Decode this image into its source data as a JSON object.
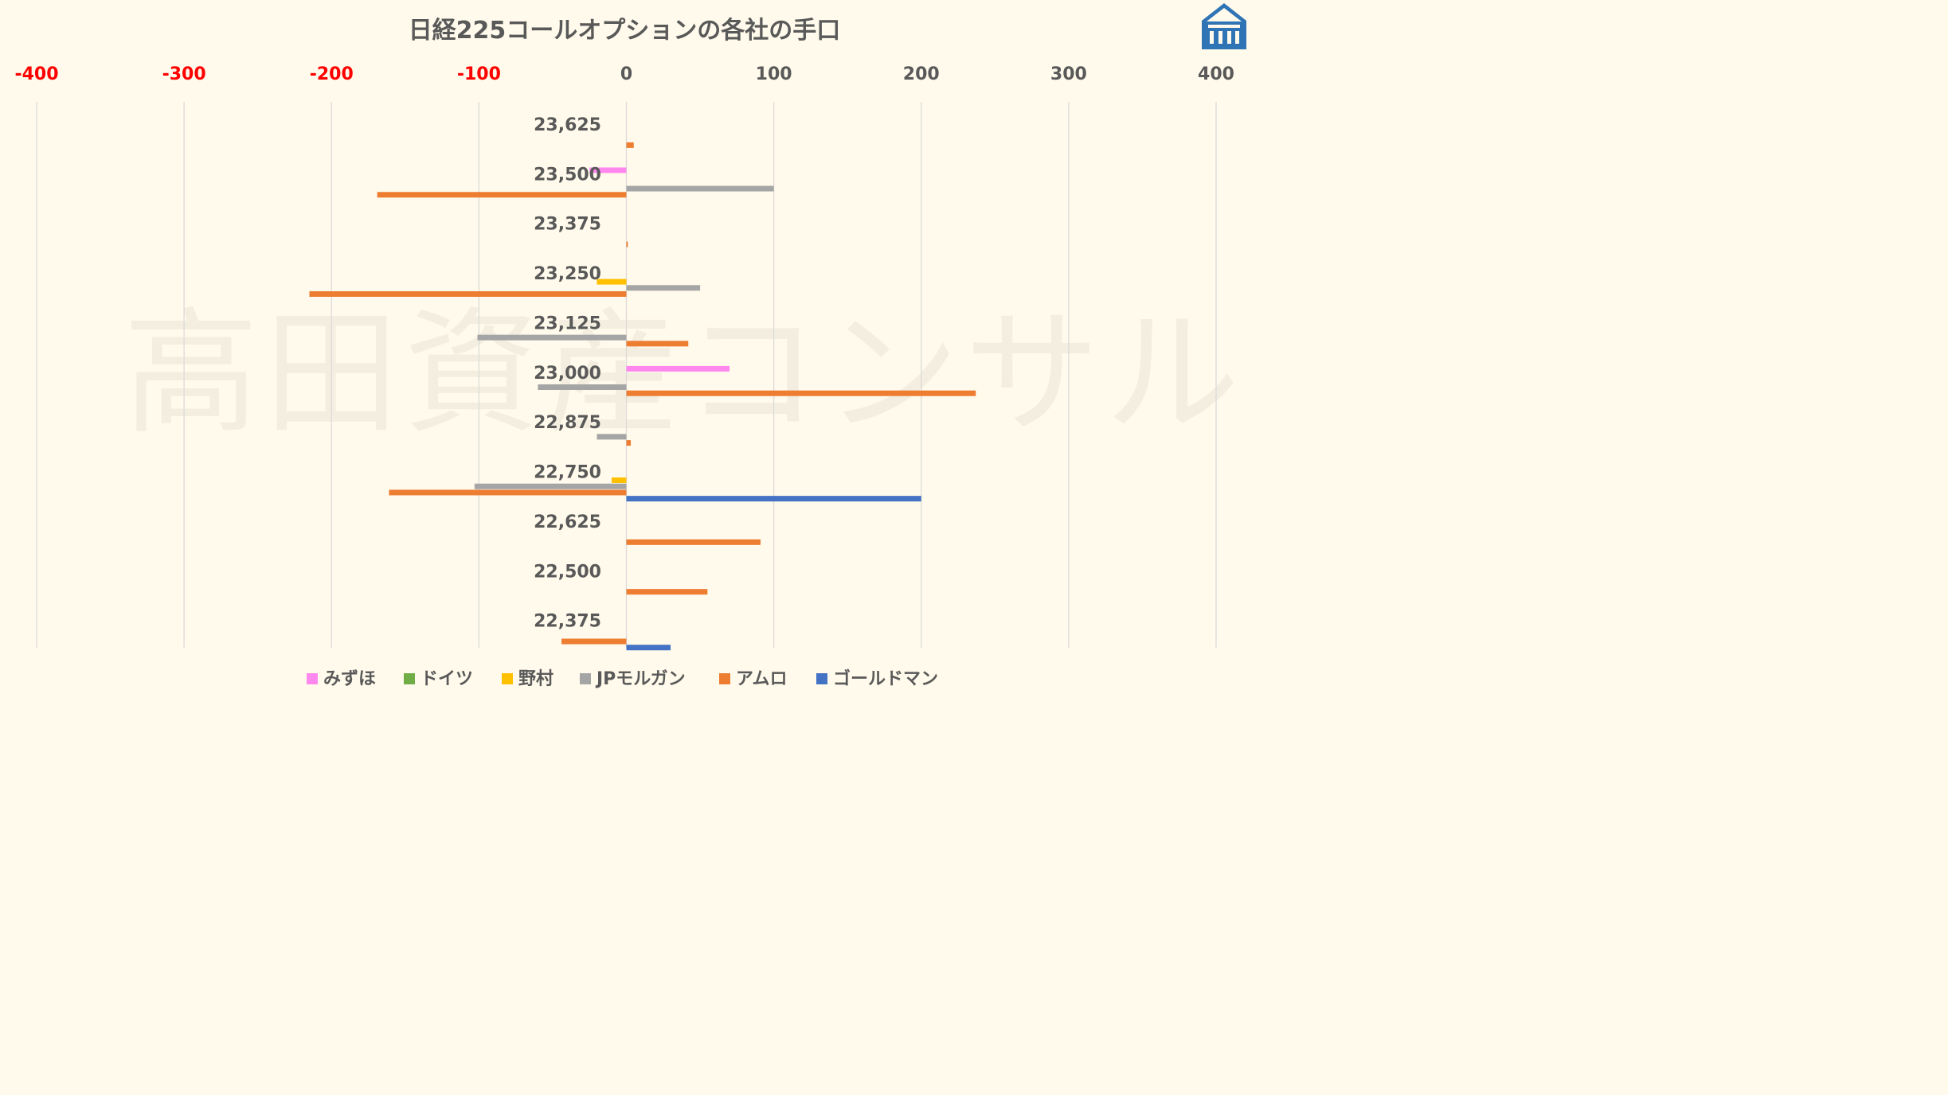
{
  "chart_data": {
    "type": "bar",
    "orientation": "horizontal",
    "title": "日経225コールオプションの各社の手口",
    "xlim": [
      -400,
      400
    ],
    "x_ticks": [
      "-400",
      "-300",
      "-200",
      "-100",
      "0",
      "100",
      "200",
      "300",
      "400"
    ],
    "categories": [
      "23,625",
      "23,500",
      "23,375",
      "23,250",
      "23,125",
      "23,000",
      "22,875",
      "22,750",
      "22,625",
      "22,500",
      "22,375"
    ],
    "series": [
      {
        "name": "みずほ",
        "color": "#ff88ee",
        "values": [
          0,
          -25,
          0,
          0,
          0,
          70,
          0,
          0,
          0,
          0,
          0
        ]
      },
      {
        "name": "ドイツ",
        "color": "#70ad47",
        "values": [
          0,
          0,
          0,
          0,
          0,
          0,
          0,
          0,
          0,
          0,
          0
        ]
      },
      {
        "name": "野村",
        "color": "#ffc000",
        "values": [
          0,
          0,
          0,
          -20,
          0,
          0,
          0,
          -10,
          0,
          0,
          0
        ]
      },
      {
        "name": "JPモルガン",
        "color": "#a5a5a5",
        "values": [
          0,
          100,
          0,
          50,
          -101,
          -60,
          -20,
          -103,
          0,
          0,
          0
        ]
      },
      {
        "name": "アムロ",
        "color": "#ed7d31",
        "values": [
          5,
          -169,
          1,
          -215,
          42,
          237,
          3,
          -161,
          91,
          55,
          -44
        ]
      },
      {
        "name": "ゴールドマン",
        "color": "#4472c4",
        "values": [
          0,
          0,
          0,
          0,
          0,
          0,
          0,
          200,
          0,
          0,
          30
        ]
      }
    ],
    "grid": true,
    "legend": "bottom",
    "watermark": "高田資産コンサル",
    "negative_tick_color": "#ff0000",
    "positive_tick_color": "#595959"
  }
}
